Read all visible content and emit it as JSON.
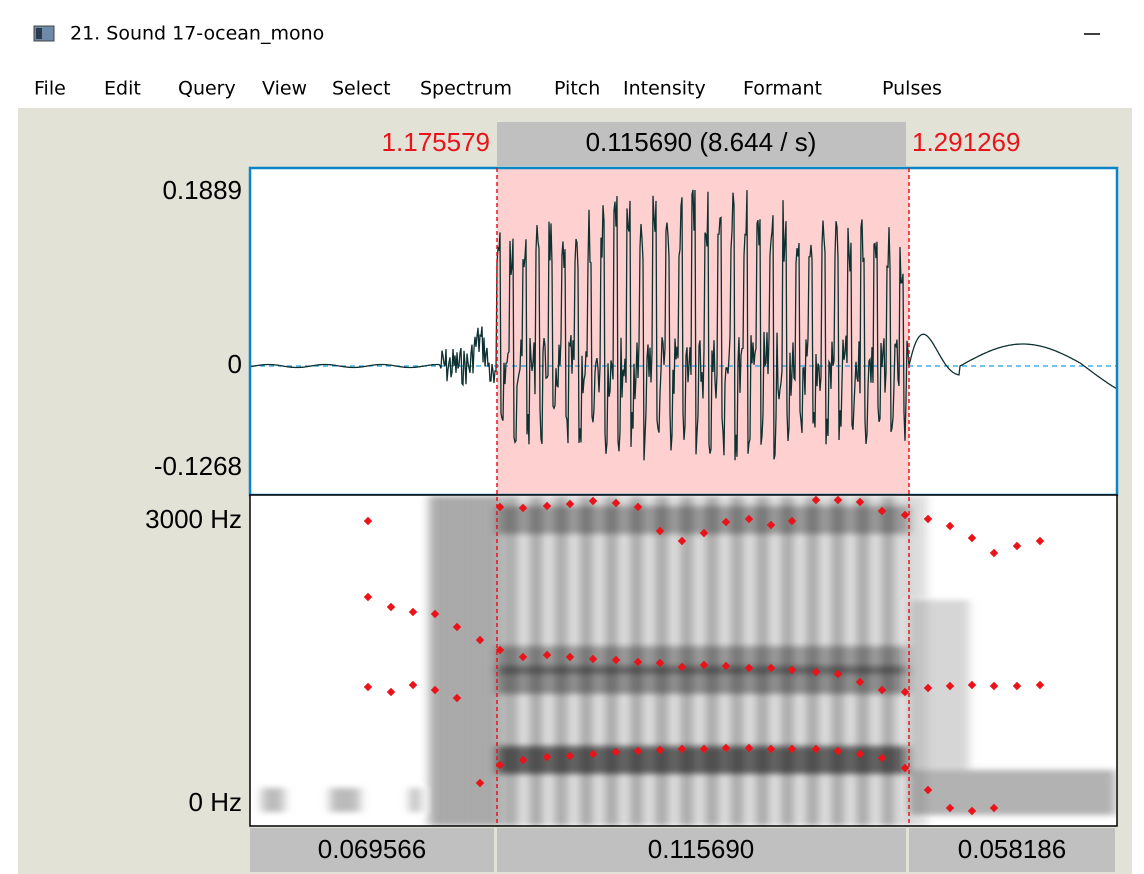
{
  "window": {
    "title": "21. Sound 17-ocean_mono"
  },
  "menu": [
    "File",
    "Edit",
    "Query",
    "View",
    "Select",
    "Spectrum",
    "Pitch",
    "Intensity",
    "Formant",
    "Pulses"
  ],
  "selection": {
    "start": "1.175579",
    "duration": "0.115690 (8.644 / s)",
    "end": "1.291269"
  },
  "waveform": {
    "max": "0.1889",
    "zero": "0",
    "min": "-0.1268"
  },
  "spectrogram": {
    "max": "3000 Hz",
    "min": "0 Hz"
  },
  "durations": [
    "0.069566",
    "0.115690",
    "0.058186"
  ]
}
